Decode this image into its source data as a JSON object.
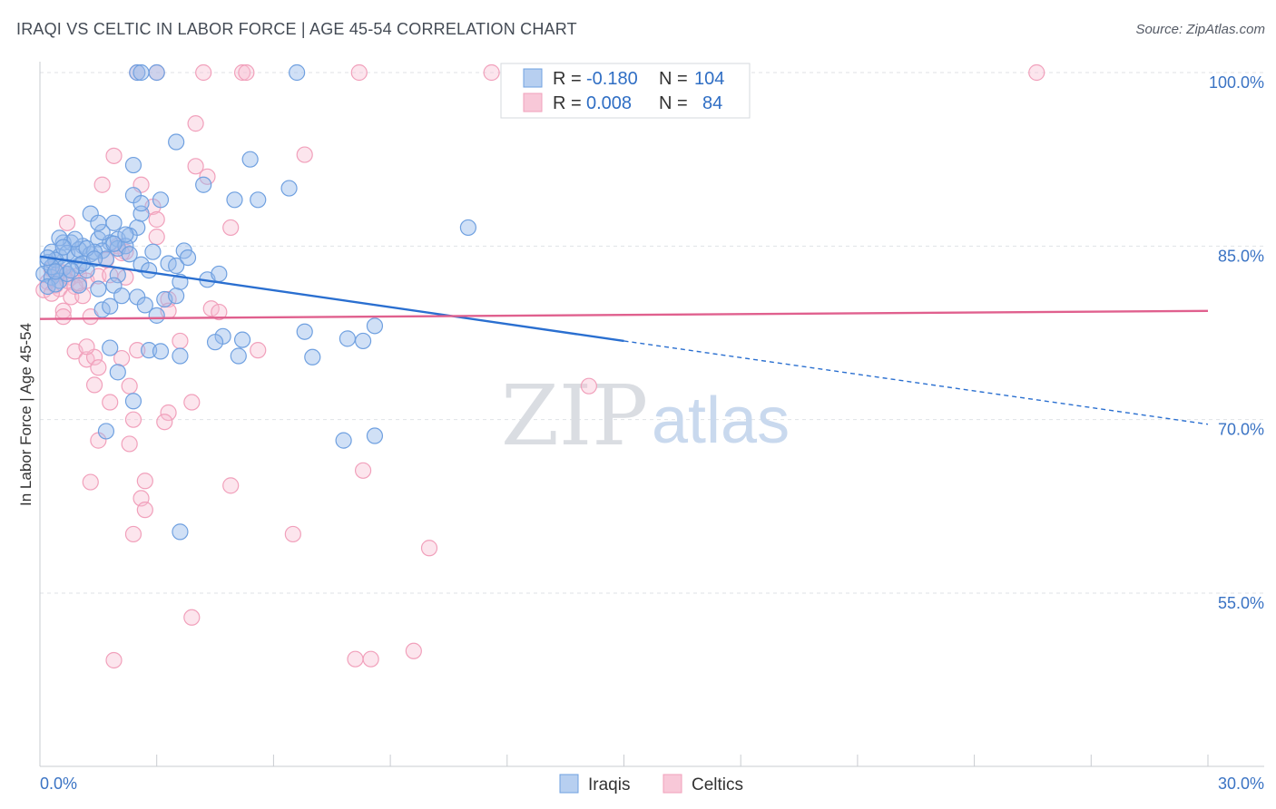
{
  "title": "IRAQI VS CELTIC IN LABOR FORCE | AGE 45-54 CORRELATION CHART",
  "source": "Source: ZipAtlas.com",
  "watermark": {
    "zip": "ZIP",
    "atlas": "atlas"
  },
  "chart_data": {
    "type": "scatter",
    "title": "IRAQI VS CELTIC IN LABOR FORCE | AGE 45-54 CORRELATION CHART",
    "xlabel": "",
    "ylabel": "In Labor Force | Age 45-54",
    "xlim": [
      0,
      30
    ],
    "ylim": [
      40,
      101.5
    ],
    "x_tick_labels": [
      "0.0%",
      "30.0%"
    ],
    "y_ticks": [
      55,
      70,
      85,
      100
    ],
    "y_tick_labels": [
      "55.0%",
      "70.0%",
      "85.0%",
      "100.0%"
    ],
    "grid": true,
    "legend_position": "top-center",
    "colors": {
      "iraqis": "#6fa0e0",
      "celtics": "#f1a0bb",
      "iraqis_line": "#2a6fd0",
      "celtics_line": "#e0608e"
    },
    "legend": [
      {
        "name": "Iraqis",
        "r_label": "R =",
        "r": "-0.180",
        "n_label": "N =",
        "n": "104"
      },
      {
        "name": "Celtics",
        "r_label": "R =",
        "r": "0.008",
        "n_label": "N =",
        "n": "84"
      }
    ],
    "series": [
      {
        "name": "Iraqis",
        "trend": {
          "x0": 0,
          "y0": 84.1,
          "x1": 15,
          "y1": 76.8,
          "dash_x1": 30,
          "dash_y1": 69.6
        },
        "points": [
          [
            2.5,
            100
          ],
          [
            2.6,
            100
          ],
          [
            3.0,
            100
          ],
          [
            6.6,
            100
          ],
          [
            3.5,
            94
          ],
          [
            5.4,
            92.5
          ],
          [
            2.4,
            92
          ],
          [
            3.1,
            89
          ],
          [
            5.0,
            89
          ],
          [
            5.6,
            89
          ],
          [
            2.4,
            89.4
          ],
          [
            6.4,
            90
          ],
          [
            4.2,
            90.3
          ],
          [
            1.3,
            87.8
          ],
          [
            1.9,
            87
          ],
          [
            2.5,
            86.6
          ],
          [
            2.6,
            87.8
          ],
          [
            11,
            86.6
          ],
          [
            0.6,
            85.3
          ],
          [
            0.8,
            85.3
          ],
          [
            1.1,
            85
          ],
          [
            1.5,
            85.6
          ],
          [
            1.8,
            85.3
          ],
          [
            2.0,
            85.6
          ],
          [
            2.3,
            85.9
          ],
          [
            0.3,
            84.5
          ],
          [
            0.5,
            84.1
          ],
          [
            0.7,
            84.4
          ],
          [
            0.9,
            84.1
          ],
          [
            1.0,
            84.7
          ],
          [
            1.3,
            84.3
          ],
          [
            1.6,
            84.6
          ],
          [
            2.0,
            84.8
          ],
          [
            2.2,
            85.0
          ],
          [
            3.7,
            84.6
          ],
          [
            0.2,
            83.6
          ],
          [
            0.4,
            83.8
          ],
          [
            0.6,
            83.1
          ],
          [
            1.0,
            83.3
          ],
          [
            1.2,
            82.9
          ],
          [
            2.6,
            83.4
          ],
          [
            2.8,
            82.9
          ],
          [
            3.3,
            83.5
          ],
          [
            3.5,
            83.3
          ],
          [
            0.1,
            82.6
          ],
          [
            0.3,
            82.3
          ],
          [
            0.5,
            82.0
          ],
          [
            2.0,
            82.5
          ],
          [
            3.6,
            81.9
          ],
          [
            4.3,
            82.1
          ],
          [
            4.6,
            82.6
          ],
          [
            0.2,
            81.5
          ],
          [
            0.4,
            81.7
          ],
          [
            1.5,
            81.3
          ],
          [
            1.9,
            81.6
          ],
          [
            2.1,
            80.7
          ],
          [
            2.5,
            80.6
          ],
          [
            3.2,
            80.4
          ],
          [
            3.5,
            80.7
          ],
          [
            2.7,
            79.9
          ],
          [
            3.0,
            79.0
          ],
          [
            1.6,
            79.5
          ],
          [
            1.8,
            79.8
          ],
          [
            4.7,
            77.2
          ],
          [
            5.2,
            76.9
          ],
          [
            4.5,
            76.7
          ],
          [
            6.8,
            77.6
          ],
          [
            7.9,
            77.0
          ],
          [
            8.3,
            76.8
          ],
          [
            8.6,
            78.1
          ],
          [
            2.8,
            76.0
          ],
          [
            3.1,
            75.9
          ],
          [
            3.6,
            75.5
          ],
          [
            5.1,
            75.5
          ],
          [
            7.0,
            75.4
          ],
          [
            1.8,
            76.2
          ],
          [
            2.0,
            74.1
          ],
          [
            2.4,
            71.6
          ],
          [
            1.7,
            69.0
          ],
          [
            7.8,
            68.2
          ],
          [
            8.6,
            68.6
          ],
          [
            3.6,
            60.3
          ],
          [
            1.0,
            81.6
          ],
          [
            0.7,
            82.6
          ],
          [
            1.4,
            84.5
          ],
          [
            2.9,
            84.5
          ],
          [
            3.8,
            84.0
          ],
          [
            0.9,
            85.6
          ],
          [
            1.6,
            86.2
          ],
          [
            2.2,
            86.0
          ],
          [
            0.5,
            85.7
          ],
          [
            1.1,
            83.5
          ],
          [
            0.3,
            83.2
          ],
          [
            0.8,
            82.9
          ],
          [
            1.7,
            83.9
          ],
          [
            2.3,
            84.3
          ],
          [
            0.4,
            82.8
          ],
          [
            0.6,
            84.9
          ],
          [
            1.2,
            84.8
          ],
          [
            2.6,
            88.7
          ],
          [
            1.4,
            83.9
          ],
          [
            0.2,
            84.0
          ],
          [
            1.5,
            87.0
          ],
          [
            1.9,
            85.2
          ]
        ]
      },
      {
        "name": "Celtics",
        "trend": {
          "x0": 0,
          "y0": 78.7,
          "x1": 30,
          "y1": 79.4
        },
        "points": [
          [
            2.5,
            100
          ],
          [
            3.0,
            100
          ],
          [
            4.2,
            100
          ],
          [
            5.2,
            100
          ],
          [
            5.3,
            100
          ],
          [
            8.2,
            100
          ],
          [
            11.6,
            100
          ],
          [
            25.6,
            100
          ],
          [
            4.0,
            95.6
          ],
          [
            6.8,
            92.9
          ],
          [
            1.9,
            92.8
          ],
          [
            4.0,
            91.9
          ],
          [
            4.3,
            91.0
          ],
          [
            1.6,
            90.3
          ],
          [
            2.6,
            90.3
          ],
          [
            2.9,
            88.4
          ],
          [
            3.0,
            87.3
          ],
          [
            0.7,
            87.0
          ],
          [
            3.0,
            85.8
          ],
          [
            4.9,
            86.6
          ],
          [
            2.0,
            85.0
          ],
          [
            2.2,
            84.5
          ],
          [
            2.1,
            84.4
          ],
          [
            1.7,
            83.8
          ],
          [
            0.3,
            83.0
          ],
          [
            0.6,
            82.7
          ],
          [
            0.8,
            82.3
          ],
          [
            1.0,
            82.5
          ],
          [
            1.2,
            82.0
          ],
          [
            1.5,
            82.4
          ],
          [
            1.8,
            82.5
          ],
          [
            0.2,
            81.9
          ],
          [
            0.4,
            81.6
          ],
          [
            0.5,
            81.3
          ],
          [
            0.9,
            81.5
          ],
          [
            0.1,
            81.2
          ],
          [
            0.3,
            80.9
          ],
          [
            0.8,
            80.6
          ],
          [
            1.1,
            80.7
          ],
          [
            3.3,
            80.4
          ],
          [
            0.6,
            79.4
          ],
          [
            0.6,
            78.9
          ],
          [
            1.3,
            78.9
          ],
          [
            3.3,
            79.4
          ],
          [
            4.4,
            79.6
          ],
          [
            4.6,
            79.3
          ],
          [
            3.6,
            76.8
          ],
          [
            5.6,
            76.0
          ],
          [
            0.9,
            75.9
          ],
          [
            1.2,
            75.2
          ],
          [
            1.4,
            75.4
          ],
          [
            1.2,
            76.3
          ],
          [
            2.5,
            76.0
          ],
          [
            2.1,
            75.3
          ],
          [
            1.5,
            74.5
          ],
          [
            2.3,
            72.9
          ],
          [
            1.4,
            73.0
          ],
          [
            14.1,
            72.9
          ],
          [
            1.8,
            71.5
          ],
          [
            3.9,
            71.5
          ],
          [
            3.3,
            70.6
          ],
          [
            2.4,
            70.0
          ],
          [
            3.2,
            69.8
          ],
          [
            1.5,
            68.2
          ],
          [
            2.3,
            67.9
          ],
          [
            8.3,
            65.6
          ],
          [
            1.3,
            64.6
          ],
          [
            2.7,
            64.7
          ],
          [
            4.9,
            64.3
          ],
          [
            2.6,
            63.2
          ],
          [
            2.7,
            62.2
          ],
          [
            2.4,
            60.1
          ],
          [
            6.5,
            60.1
          ],
          [
            10.0,
            58.9
          ],
          [
            3.9,
            52.9
          ],
          [
            1.9,
            49.2
          ],
          [
            8.1,
            49.3
          ],
          [
            8.5,
            49.3
          ],
          [
            9.6,
            50.0
          ],
          [
            0.4,
            82.8
          ],
          [
            0.7,
            82.0
          ],
          [
            1.0,
            81.8
          ],
          [
            2.2,
            82.3
          ],
          [
            0.5,
            82.8
          ]
        ]
      }
    ]
  }
}
